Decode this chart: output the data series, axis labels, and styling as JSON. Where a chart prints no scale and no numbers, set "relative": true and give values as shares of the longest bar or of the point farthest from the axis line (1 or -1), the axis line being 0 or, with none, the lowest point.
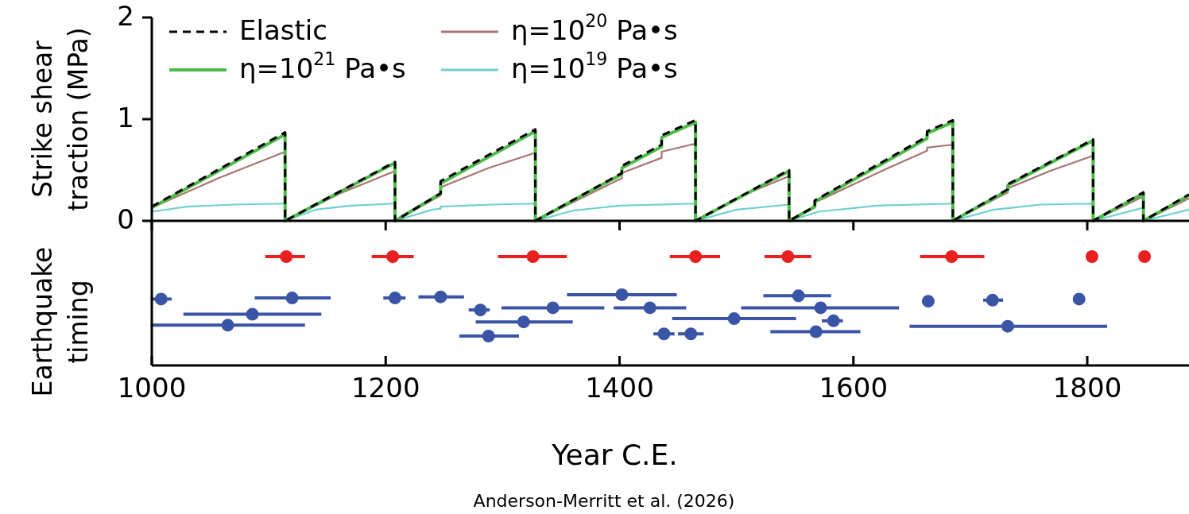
{
  "chart_data": [
    {
      "type": "line",
      "ylabel": "Strike shear traction (MPa)",
      "xlim": [
        1000,
        1887
      ],
      "xticks": [
        1000,
        1200,
        1400,
        1600,
        1800
      ],
      "ylim": [
        0,
        2
      ],
      "yticks": [
        0,
        1,
        2
      ],
      "tick_labels": "y",
      "legend": "top",
      "marker": "none",
      "series": [
        {
          "name": "Elastic",
          "color": "#000000",
          "line_style": "dashed",
          "x": [
            1000,
            1114,
            1114,
            1208,
            1208,
            1247,
            1247,
            1328,
            1328,
            1402,
            1402,
            1436,
            1436,
            1465,
            1465,
            1545,
            1545,
            1567,
            1567,
            1663,
            1663,
            1685,
            1685,
            1732,
            1732,
            1805,
            1805,
            1848,
            1848,
            1887
          ],
          "values": [
            0.14,
            0.87,
            0,
            0.58,
            0,
            0.27,
            0.39,
            0.9,
            0,
            0.47,
            0.54,
            0.75,
            0.84,
            0.99,
            0,
            0.5,
            0,
            0.14,
            0.2,
            0.83,
            0.88,
            0.99,
            0,
            0.31,
            0.36,
            0.8,
            0,
            0.28,
            0,
            0.26
          ]
        },
        {
          "name": "η=10$^{21}$ Pa•s",
          "color": "#4cbb47",
          "line_style": "solid",
          "x": [
            1000,
            1114,
            1114,
            1208,
            1208,
            1247,
            1247,
            1328,
            1328,
            1402,
            1402,
            1436,
            1436,
            1465,
            1465,
            1545,
            1545,
            1567,
            1567,
            1663,
            1663,
            1685,
            1685,
            1732,
            1732,
            1805,
            1805,
            1848,
            1848,
            1887
          ],
          "values": [
            0.13,
            0.85,
            0,
            0.57,
            0,
            0.27,
            0.37,
            0.88,
            0,
            0.46,
            0.52,
            0.73,
            0.82,
            0.97,
            0,
            0.49,
            0,
            0.14,
            0.19,
            0.81,
            0.86,
            0.97,
            0,
            0.3,
            0.35,
            0.79,
            0,
            0.27,
            0,
            0.25
          ]
        },
        {
          "name": "η=10$^{20}$ Pa•s",
          "color": "#a87570",
          "line_style": "solid",
          "x": [
            1000,
            1057,
            1114,
            1114,
            1161,
            1208,
            1208,
            1247,
            1247,
            1288,
            1328,
            1328,
            1402,
            1402,
            1436,
            1436,
            1465,
            1465,
            1505,
            1545,
            1545,
            1567,
            1567,
            1626,
            1663,
            1663,
            1685,
            1685,
            1732,
            1732,
            1768,
            1805,
            1805,
            1848,
            1848,
            1887
          ],
          "values": [
            0.13,
            0.42,
            0.68,
            0,
            0.27,
            0.49,
            0,
            0.25,
            0.33,
            0.52,
            0.67,
            0,
            0.42,
            0.47,
            0.62,
            0.68,
            0.76,
            0,
            0.25,
            0.44,
            0,
            0.13,
            0.18,
            0.5,
            0.69,
            0.72,
            0.75,
            0,
            0.28,
            0.32,
            0.49,
            0.64,
            0,
            0.24,
            0,
            0.22
          ]
        },
        {
          "name": "η=10$^{19}$ Pa•s",
          "color": "#6fd0cf",
          "line_style": "solid",
          "x": [
            1000,
            1030,
            1070,
            1114,
            1114,
            1140,
            1170,
            1208,
            1208,
            1240,
            1247,
            1247,
            1290,
            1328,
            1328,
            1360,
            1400,
            1465,
            1465,
            1500,
            1545,
            1545,
            1570,
            1620,
            1685,
            1685,
            1720,
            1760,
            1805,
            1805,
            1848,
            1848,
            1887
          ],
          "values": [
            0.09,
            0.14,
            0.16,
            0.17,
            0,
            0.11,
            0.15,
            0.17,
            0,
            0.11,
            0.12,
            0.14,
            0.16,
            0.17,
            0,
            0.1,
            0.15,
            0.17,
            0,
            0.11,
            0.16,
            0,
            0.09,
            0.15,
            0.17,
            0,
            0.11,
            0.16,
            0.17,
            0,
            0.13,
            0,
            0.11
          ]
        }
      ]
    },
    {
      "type": "scatter",
      "ylabel": "Earthquake timing",
      "xlabel": "Year C.E.",
      "xlim": [
        1000,
        1887
      ],
      "xticks": [
        1000,
        1200,
        1400,
        1600,
        1800
      ],
      "relative": true,
      "marker": "circle",
      "annotations": [
        "Anderson-Merritt et al. (2026)"
      ],
      "series": [
        {
          "color": "#e8201f",
          "x": [
            1115,
            1206,
            1326,
            1465,
            1544,
            1684,
            1804,
            1849
          ],
          "values": [
            1,
            1,
            1,
            1,
            1,
            1,
            1,
            1
          ],
          "xerrors": [
            [
              1097,
              1131
            ],
            [
              1188,
              1224
            ],
            [
              1296,
              1355
            ],
            [
              1443,
              1486
            ],
            [
              1524,
              1564
            ],
            [
              1657,
              1712
            ],
            null,
            null
          ]
        },
        {
          "color": "#3a55a5",
          "x": [
            1008,
            1120,
            1086,
            1065,
            1208,
            1247,
            1281,
            1343,
            1318,
            1288,
            1402,
            1426,
            1438,
            1461,
            1498,
            1553,
            1572,
            1583,
            1568,
            1664,
            1719,
            1793,
            1732
          ],
          "values": [
            0.61,
            0.62,
            0.47,
            0.37,
            0.62,
            0.63,
            0.51,
            0.53,
            0.4,
            0.27,
            0.65,
            0.53,
            0.29,
            0.29,
            0.43,
            0.64,
            0.53,
            0.41,
            0.31,
            0.59,
            0.6,
            0.61,
            0.36
          ],
          "xerrors": [
            [
              999,
              1017
            ],
            [
              1088,
              1153
            ],
            [
              1027,
              1145
            ],
            [
              999,
              1131
            ],
            [
              1198,
              1217
            ],
            [
              1228,
              1267
            ],
            [
              1271,
              1289
            ],
            [
              1299,
              1387
            ],
            [
              1277,
              1360
            ],
            [
              1263,
              1314
            ],
            [
              1355,
              1449
            ],
            [
              1395,
              1457
            ],
            [
              1429,
              1447
            ],
            [
              1450,
              1472
            ],
            [
              1445,
              1551
            ],
            [
              1523,
              1581
            ],
            [
              1504,
              1639
            ],
            [
              1573,
              1591
            ],
            [
              1529,
              1606
            ],
            null,
            [
              1711,
              1728
            ],
            null,
            [
              1648,
              1817
            ]
          ]
        }
      ]
    }
  ]
}
